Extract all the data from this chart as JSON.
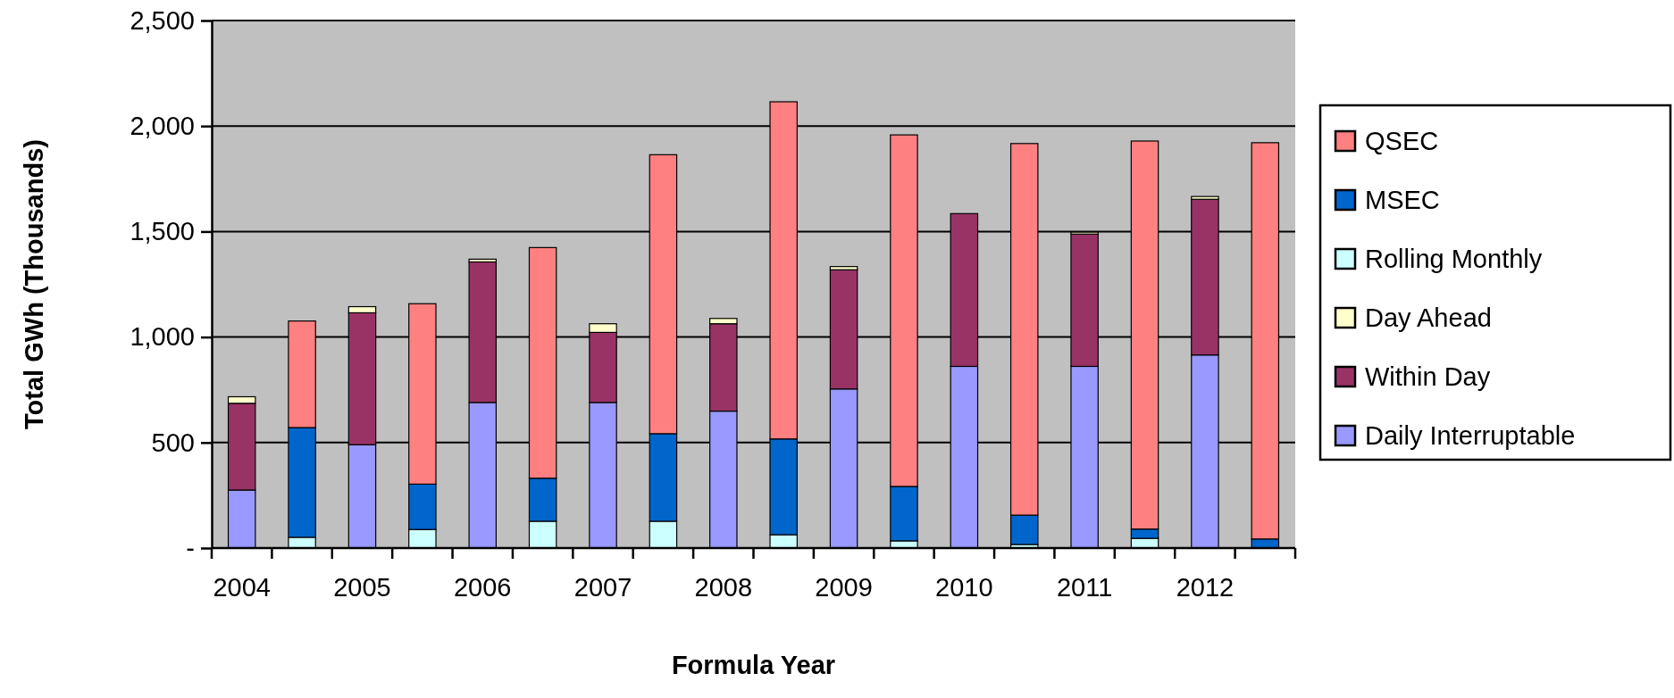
{
  "chart_data": {
    "type": "bar",
    "stacked": true,
    "xlabel": "Formula Year",
    "ylabel": "Total GWh (Thousands)",
    "categories": [
      "2004",
      null,
      "2005",
      null,
      "2006",
      null,
      "2007",
      null,
      "2008",
      null,
      "2009",
      null,
      "2010",
      null,
      "2011",
      null,
      "2012",
      null
    ],
    "ylim": [
      0,
      2500
    ],
    "yticks": [
      {
        "value": 0,
        "label": "-"
      },
      {
        "value": 500,
        "label": "500"
      },
      {
        "value": 1000,
        "label": "1,000"
      },
      {
        "value": 1500,
        "label": "1,500"
      },
      {
        "value": 2000,
        "label": "2,000"
      },
      {
        "value": 2500,
        "label": "2,500"
      }
    ],
    "grid": "y",
    "legend": "right",
    "series": [
      {
        "name": "Daily Interruptable",
        "color": "#9999ff",
        "values": [
          275,
          0,
          490,
          0,
          690,
          0,
          690,
          0,
          649,
          0,
          754,
          0,
          861,
          0,
          861,
          0,
          915,
          0
        ]
      },
      {
        "name": "Within Day",
        "color": "#993366",
        "values": [
          411,
          0,
          625,
          0,
          666,
          0,
          332,
          0,
          414,
          0,
          565,
          0,
          724,
          0,
          627,
          0,
          738,
          0
        ]
      },
      {
        "name": "Day Ahead",
        "color": "#ffffcc",
        "values": [
          31,
          0,
          29,
          0,
          13,
          0,
          41,
          0,
          25,
          0,
          15,
          0,
          0,
          0,
          9,
          0,
          13,
          0
        ]
      },
      {
        "name": "Rolling Monthly",
        "color": "#ccffff",
        "values": [
          0,
          51,
          0,
          88,
          0,
          127,
          0,
          127,
          0,
          63,
          0,
          34,
          0,
          17,
          0,
          46,
          0,
          null
        ]
      },
      {
        "name": "MSEC",
        "color": "#0066cc",
        "values": [
          0,
          520,
          0,
          215,
          0,
          204,
          0,
          415,
          0,
          454,
          0,
          258,
          0,
          139,
          0,
          44,
          0,
          43
        ]
      },
      {
        "name": "QSEC",
        "color": "#ff8080",
        "values": [
          0,
          505,
          0,
          855,
          0,
          1093,
          0,
          1322,
          0,
          1598,
          0,
          1666,
          0,
          1761,
          0,
          1839,
          0,
          1878
        ]
      }
    ]
  }
}
